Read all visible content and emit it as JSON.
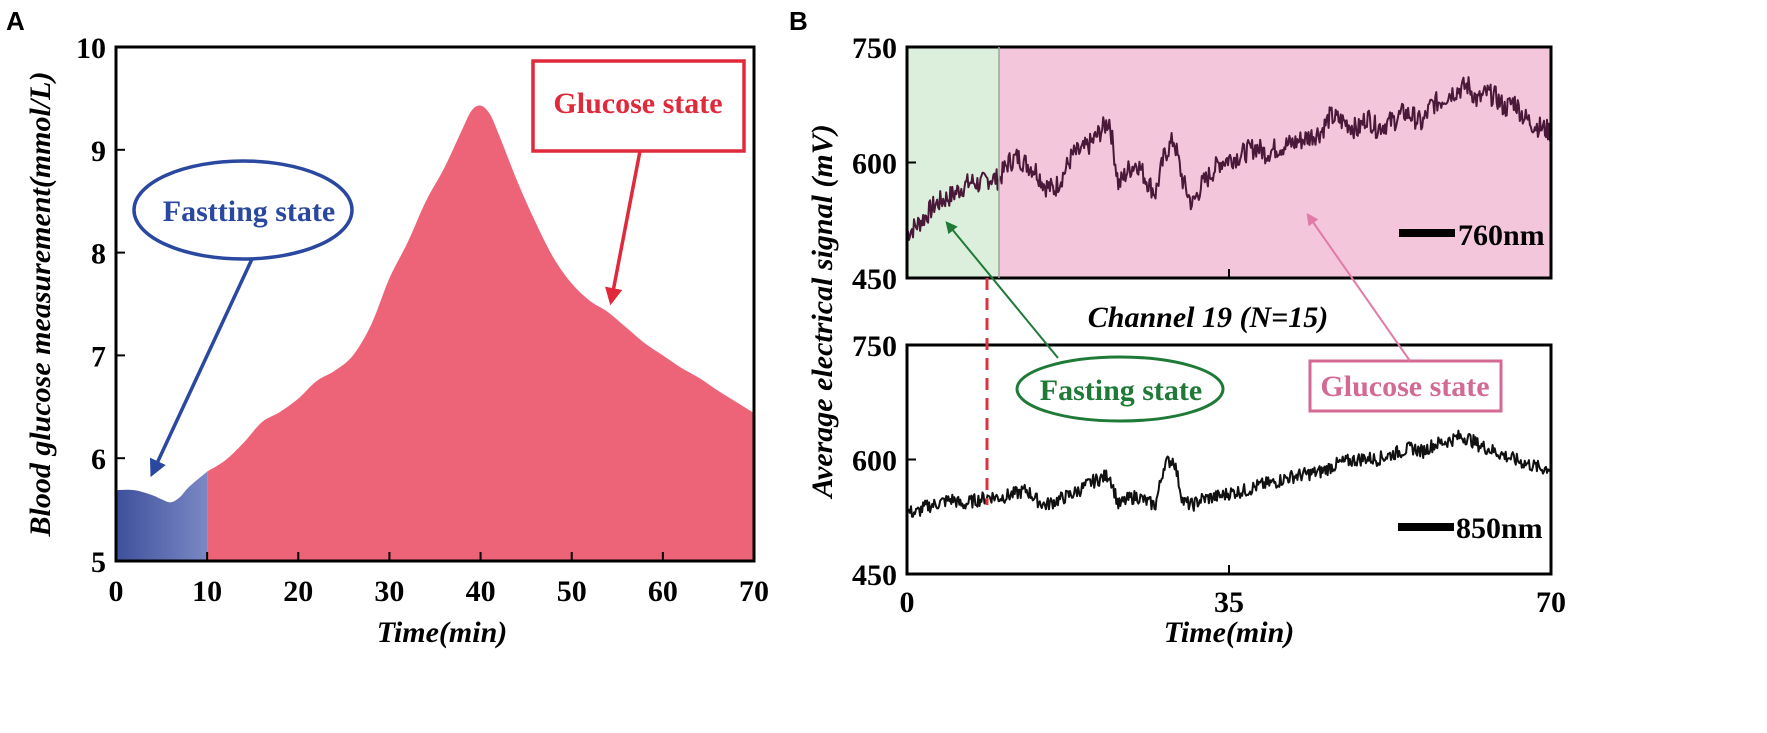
{
  "chart_data": [
    {
      "panel": "A",
      "type": "area",
      "title": "",
      "xlabel": "Time(min)",
      "ylabel": "Blood glucose measurement(mmol/L)",
      "xlim": [
        0,
        70
      ],
      "ylim": [
        5,
        10
      ],
      "xticks": [
        "0",
        "10",
        "20",
        "30",
        "40",
        "50",
        "60",
        "70"
      ],
      "yticks": [
        "5",
        "6",
        "7",
        "8",
        "9",
        "10"
      ],
      "series": [
        {
          "name": "Fastting state",
          "color": "#4a5ca6",
          "x": [
            0,
            2,
            4,
            5,
            6,
            7,
            8,
            10
          ],
          "values": [
            5.69,
            5.69,
            5.64,
            5.6,
            5.57,
            5.62,
            5.72,
            5.87
          ]
        },
        {
          "name": "Glucose state",
          "color": "#ed6479",
          "x": [
            10,
            12,
            14,
            16,
            18,
            20,
            22,
            24,
            26,
            28,
            30,
            32,
            34,
            36,
            38,
            39,
            40,
            41,
            42,
            44,
            46,
            48,
            50,
            52,
            54,
            56,
            58,
            60,
            62,
            64,
            66,
            68,
            70
          ],
          "values": [
            5.87,
            5.98,
            6.15,
            6.35,
            6.45,
            6.58,
            6.75,
            6.85,
            7.0,
            7.3,
            7.75,
            8.1,
            8.5,
            8.82,
            9.2,
            9.38,
            9.43,
            9.35,
            9.15,
            8.7,
            8.3,
            7.95,
            7.7,
            7.53,
            7.42,
            7.27,
            7.12,
            7.0,
            6.88,
            6.78,
            6.66,
            6.55,
            6.44
          ]
        }
      ],
      "annotations": [
        {
          "text": "Fastting state",
          "color": "#2a48a0"
        },
        {
          "text": "Glucose state",
          "color": "#e02a3c"
        }
      ]
    },
    {
      "panel": "B",
      "type": "line",
      "title": "Channel 19 (N=15)",
      "xlabel": "Time(min)",
      "ylabel": "Average electrical signal (mV)",
      "xlim": [
        0,
        70
      ],
      "ylim": [
        450,
        750
      ],
      "xticks": [
        "0",
        "35",
        "70"
      ],
      "yticks": [
        "450",
        "600",
        "750"
      ],
      "fasting_end_min": 10,
      "subplots": [
        {
          "name": "760nm",
          "color": "#4a1838",
          "x": [
            0,
            1,
            2,
            3,
            4,
            5,
            6,
            7,
            8,
            9,
            10,
            11,
            12,
            13,
            14,
            15,
            16,
            17,
            18,
            19,
            20,
            21,
            22,
            23,
            24,
            25,
            26,
            27,
            28,
            29,
            30,
            31,
            32,
            33,
            34,
            35,
            36,
            37,
            38,
            39,
            40,
            41,
            42,
            43,
            44,
            45,
            46,
            47,
            48,
            49,
            50,
            51,
            52,
            53,
            54,
            55,
            56,
            57,
            58,
            59,
            60,
            61,
            62,
            63,
            64,
            65,
            66,
            67,
            68,
            69,
            70
          ],
          "values": [
            508,
            518,
            530,
            545,
            552,
            558,
            568,
            575,
            572,
            580,
            578,
            600,
            607,
            598,
            590,
            570,
            565,
            585,
            610,
            615,
            625,
            640,
            655,
            570,
            590,
            600,
            578,
            560,
            610,
            630,
            575,
            545,
            570,
            585,
            600,
            605,
            608,
            615,
            620,
            612,
            618,
            622,
            625,
            630,
            635,
            640,
            660,
            655,
            650,
            642,
            660,
            645,
            650,
            655,
            665,
            660,
            650,
            675,
            680,
            690,
            695,
            700,
            680,
            690,
            685,
            670,
            680,
            660,
            650,
            645,
            640
          ]
        },
        {
          "name": "850nm",
          "color": "#111111",
          "x": [
            0,
            1,
            2,
            3,
            4,
            5,
            6,
            7,
            8,
            9,
            10,
            11,
            12,
            13,
            14,
            15,
            16,
            17,
            18,
            19,
            20,
            21,
            22,
            23,
            24,
            25,
            26,
            27,
            28,
            29,
            30,
            31,
            32,
            33,
            34,
            35,
            36,
            37,
            38,
            39,
            40,
            41,
            42,
            43,
            44,
            45,
            46,
            47,
            48,
            49,
            50,
            51,
            52,
            53,
            54,
            55,
            56,
            57,
            58,
            59,
            60,
            61,
            62,
            63,
            64,
            65,
            66,
            67,
            68,
            69,
            70
          ],
          "values": [
            532,
            530,
            538,
            541,
            545,
            548,
            540,
            545,
            548,
            552,
            550,
            553,
            556,
            560,
            548,
            540,
            545,
            550,
            555,
            562,
            570,
            575,
            580,
            540,
            548,
            552,
            545,
            540,
            595,
            600,
            545,
            540,
            548,
            550,
            552,
            556,
            558,
            560,
            565,
            568,
            570,
            575,
            578,
            580,
            582,
            584,
            590,
            595,
            598,
            600,
            602,
            600,
            604,
            608,
            612,
            615,
            610,
            618,
            622,
            625,
            630,
            628,
            620,
            615,
            610,
            605,
            600,
            596,
            592,
            588,
            590
          ]
        }
      ],
      "annotations": [
        {
          "text": "Fasting state",
          "color": "#1f7a38"
        },
        {
          "text": "Glucose state",
          "color": "#d36a93"
        }
      ]
    }
  ],
  "labels": {
    "panel_a": "A",
    "panel_b": "B",
    "a_xlabel": "Time(min)",
    "a_ylabel": "Blood glucose measurement(mmol/L)",
    "a_fasting": "Fastting state",
    "a_glucose": "Glucose state",
    "b_title": "Channel 19 (N=15)",
    "b_xlabel": "Time(min)",
    "b_ylabel": "Average electrical signal (mV)",
    "b_fasting": "Fasting state",
    "b_glucose": "Glucose state",
    "b_top_scale": "760nm",
    "b_bottom_scale": "850nm"
  },
  "colors": {
    "fasting_fill": "#4a5ca6",
    "glucose_fill": "#ed6479",
    "fasting_bg": "#dcefdc",
    "glucose_bg": "#f3c6db",
    "top_line": "#4a1838",
    "bottom_line": "#111111",
    "fasting_arrow_a": "#2a48a0",
    "glucose_arrow_a": "#e02a3c",
    "fasting_b": "#1f7a38",
    "glucose_b": "#d36a93",
    "boundary": "#d9343f"
  }
}
